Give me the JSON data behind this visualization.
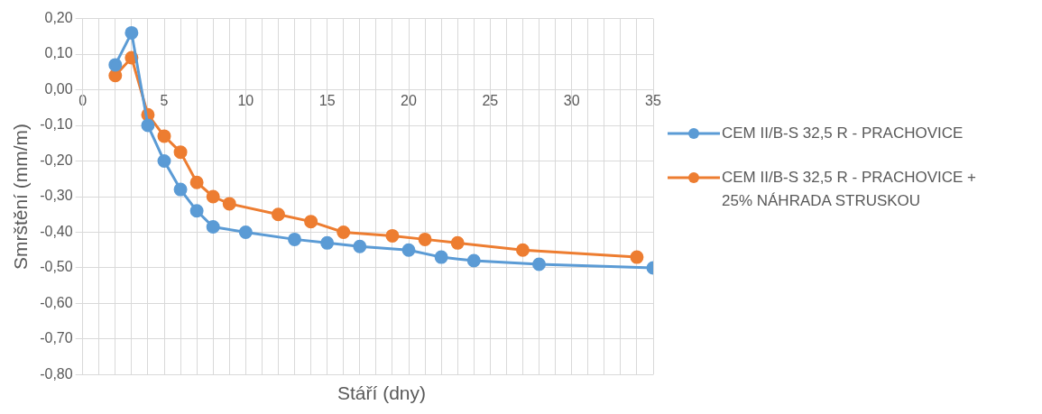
{
  "chart_data": {
    "type": "line",
    "xlabel": "Stáří (dny)",
    "ylabel": "Smrštění (mm/m)",
    "xlim": [
      0,
      35
    ],
    "ylim": [
      -0.8,
      0.2
    ],
    "xticks": [
      0,
      {
        "value": 1,
        "label": null
      },
      {
        "value": 2,
        "label": null
      },
      {
        "value": 3,
        "label": null
      },
      {
        "value": 4,
        "label": null
      },
      5,
      {
        "value": 6,
        "label": null
      },
      {
        "value": 7,
        "label": null
      },
      {
        "value": 8,
        "label": null
      },
      {
        "value": 9,
        "label": null
      },
      10,
      {
        "value": 11,
        "label": null
      },
      {
        "value": 12,
        "label": null
      },
      {
        "value": 13,
        "label": null
      },
      {
        "value": 14,
        "label": null
      },
      15,
      {
        "value": 16,
        "label": null
      },
      {
        "value": 17,
        "label": null
      },
      {
        "value": 18,
        "label": null
      },
      {
        "value": 19,
        "label": null
      },
      20,
      {
        "value": 21,
        "label": null
      },
      {
        "value": 22,
        "label": null
      },
      {
        "value": 23,
        "label": null
      },
      {
        "value": 24,
        "label": null
      },
      25,
      {
        "value": 26,
        "label": null
      },
      {
        "value": 27,
        "label": null
      },
      {
        "value": 28,
        "label": null
      },
      {
        "value": 29,
        "label": null
      },
      30,
      {
        "value": 31,
        "label": null
      },
      {
        "value": 32,
        "label": null
      },
      {
        "value": 33,
        "label": null
      },
      {
        "value": 34,
        "label": null
      },
      35
    ],
    "yticks": [
      {
        "value": -0.8,
        "label": "-0,80"
      },
      {
        "value": -0.7,
        "label": "-0,70"
      },
      {
        "value": -0.6,
        "label": "-0,60"
      },
      {
        "value": -0.5,
        "label": "-0,50"
      },
      {
        "value": -0.4,
        "label": "-0,40"
      },
      {
        "value": -0.3,
        "label": "-0,30"
      },
      {
        "value": -0.2,
        "label": "-0,20"
      },
      {
        "value": -0.1,
        "label": "-0,10"
      },
      {
        "value": 0,
        "label": "0,00"
      },
      {
        "value": 0.1,
        "label": "0,10"
      },
      {
        "value": 0.2,
        "label": "0,20"
      }
    ],
    "grid": true,
    "legend": "right",
    "marker": "circle",
    "series": [
      {
        "name": "CEM II/B-S 32,5 R - PRACHOVICE",
        "color": "#5b9bd5",
        "x": [
          2,
          3,
          4,
          5,
          6,
          7,
          8,
          10,
          13,
          15,
          17,
          20,
          22,
          24,
          28,
          35
        ],
        "values": [
          0.07,
          0.16,
          -0.1,
          -0.2,
          -0.28,
          -0.34,
          -0.385,
          -0.4,
          -0.42,
          -0.43,
          -0.44,
          -0.45,
          -0.47,
          -0.48,
          -0.49,
          -0.5
        ]
      },
      {
        "name": "CEM II/B-S 32,5 R - PRACHOVICE + 25% NÁHRADA STRUSKOU",
        "color": "#ed7d31",
        "x": [
          2,
          3,
          4,
          5,
          6,
          7,
          8,
          9,
          12,
          14,
          16,
          19,
          21,
          23,
          27,
          34
        ],
        "values": [
          0.04,
          0.09,
          -0.07,
          -0.13,
          -0.175,
          -0.26,
          -0.3,
          -0.32,
          -0.35,
          -0.37,
          -0.4,
          -0.41,
          -0.42,
          -0.43,
          -0.45,
          -0.47
        ]
      }
    ]
  }
}
